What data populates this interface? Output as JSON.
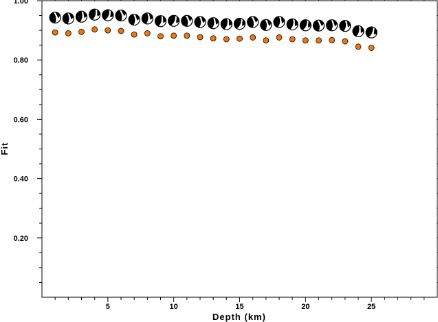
{
  "chart_data": {
    "type": "scatter",
    "title": "",
    "xlabel": "Depth (km)",
    "ylabel": "Fit",
    "xlim": [
      0,
      30
    ],
    "ylim": [
      0,
      1.0
    ],
    "x_ticks": [
      5,
      10,
      15,
      20,
      25
    ],
    "x_tick_labels": [
      "5",
      "10",
      "15",
      "20",
      "25"
    ],
    "y_ticks": [
      0.2,
      0.4,
      0.6,
      0.8,
      1.0
    ],
    "y_tick_labels": [
      "0.20",
      "0.40",
      "0.60",
      "0.80",
      "1.00"
    ],
    "grid": false,
    "marker_color": "#ee7711",
    "series": [
      {
        "marker": "mechanism-beachball",
        "x": [
          1,
          2,
          3,
          4,
          5,
          6,
          7,
          8,
          9,
          10,
          11,
          12,
          13,
          14,
          15,
          16,
          17,
          18,
          19,
          20,
          21,
          22,
          23,
          24,
          25
        ],
        "y": [
          0.943,
          0.94,
          0.946,
          0.953,
          0.951,
          0.95,
          0.936,
          0.94,
          0.931,
          0.932,
          0.932,
          0.928,
          0.924,
          0.921,
          0.922,
          0.928,
          0.918,
          0.928,
          0.92,
          0.917,
          0.916,
          0.917,
          0.915,
          0.897,
          0.893
        ]
      },
      {
        "marker": "orange-circle",
        "x": [
          1,
          2,
          3,
          4,
          5,
          6,
          7,
          8,
          9,
          10,
          11,
          12,
          13,
          14,
          15,
          16,
          17,
          18,
          19,
          20,
          21,
          22,
          23,
          24,
          25
        ],
        "y": [
          0.893,
          0.89,
          0.895,
          0.903,
          0.9,
          0.898,
          0.886,
          0.89,
          0.88,
          0.882,
          0.882,
          0.877,
          0.873,
          0.87,
          0.872,
          0.876,
          0.866,
          0.876,
          0.87,
          0.866,
          0.866,
          0.867,
          0.863,
          0.845,
          0.841
        ]
      }
    ]
  }
}
